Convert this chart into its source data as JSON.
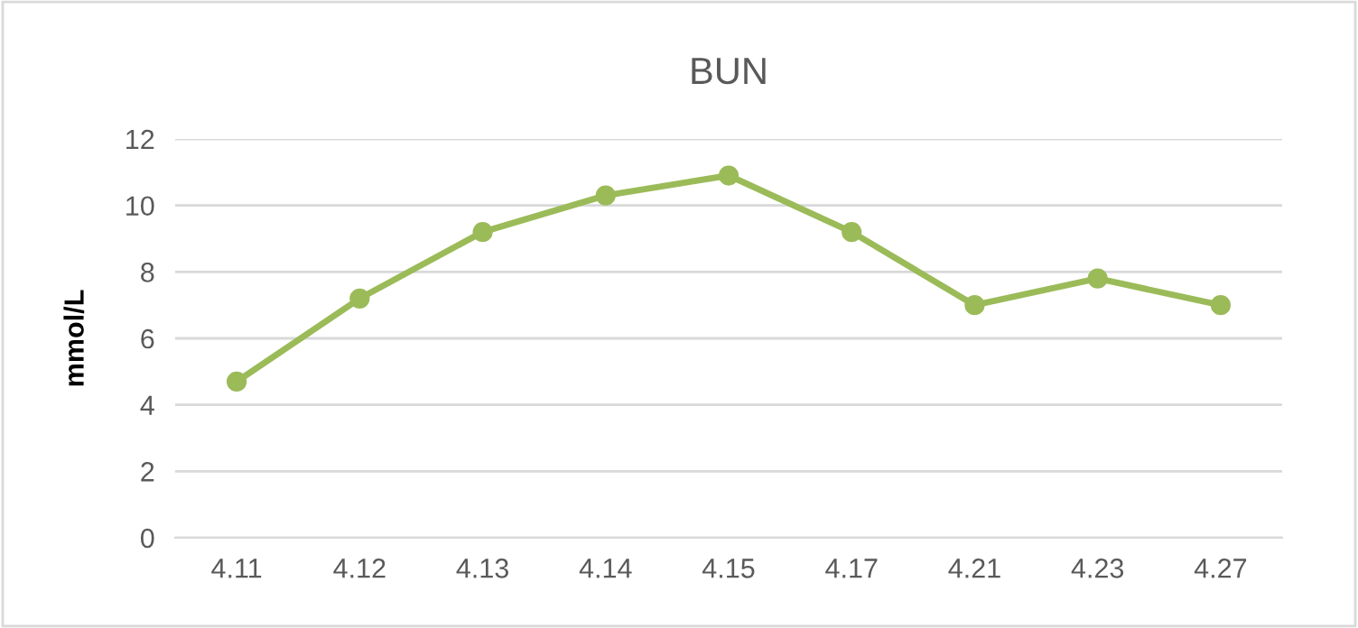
{
  "chart_data": {
    "type": "line",
    "title": "BUN",
    "ylabel": "mmol/L",
    "categories": [
      "4.11",
      "4.12",
      "4.13",
      "4.14",
      "4.15",
      "4.17",
      "4.21",
      "4.23",
      "4.27"
    ],
    "series": [
      {
        "color": "#9bbb59",
        "values": [
          4.7,
          7.2,
          9.2,
          10.3,
          10.9,
          9.2,
          7.0,
          7.8,
          7.0
        ]
      }
    ],
    "ylim": [
      0,
      12
    ],
    "yticks": [
      0,
      2,
      4,
      6,
      8,
      10,
      12
    ],
    "grid": "y",
    "marker": "circle",
    "line_style": "solid",
    "legend": false
  }
}
